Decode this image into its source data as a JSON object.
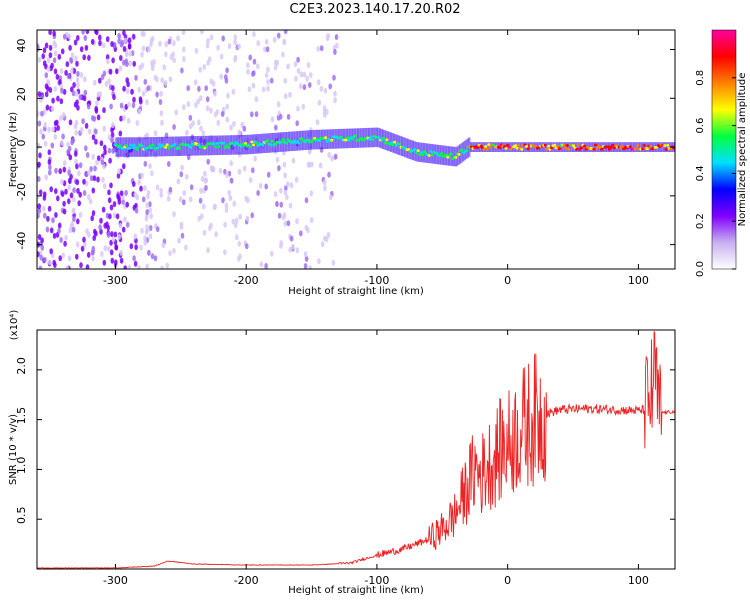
{
  "title": "C2E3.2023.140.17.20.R02",
  "chart_data": [
    {
      "type": "heatmap",
      "xlabel": "Height of straight line (km)",
      "ylabel": "Frequency (Hz)",
      "xlim": [
        -360,
        128
      ],
      "ylim": [
        -50,
        48
      ],
      "xticks": [
        -300,
        -200,
        -100,
        0,
        100
      ],
      "yticks": [
        -40,
        -20,
        0,
        20,
        40
      ],
      "colorbar": {
        "label": "Normalized spectral amplitude",
        "range": [
          0.0,
          1.0
        ],
        "ticks": [
          "0.0",
          "0.2",
          "0.4",
          "0.6",
          "0.8"
        ],
        "colormap": [
          "#ffffff",
          "#c8b0f0",
          "#8000ff",
          "#0000ff",
          "#00e0ff",
          "#00ff40",
          "#ffff00",
          "#ff8000",
          "#ff0000",
          "#ff00a0"
        ]
      },
      "trace_center_hz": [
        {
          "x": -280,
          "y": 0
        },
        {
          "x": -200,
          "y": 1
        },
        {
          "x": -150,
          "y": 3
        },
        {
          "x": -100,
          "y": 4
        },
        {
          "x": -70,
          "y": -2
        },
        {
          "x": -40,
          "y": -4
        },
        {
          "x": -30,
          "y": 0
        },
        {
          "x": 0,
          "y": 0
        },
        {
          "x": 128,
          "y": 0
        }
      ]
    },
    {
      "type": "line",
      "xlabel": "Height of straight line (km)",
      "ylabel": "SNR (10 * v/v)",
      "y_multiplier": "(x10⁴)",
      "xlim": [
        -360,
        128
      ],
      "ylim": [
        0,
        2.4
      ],
      "xticks": [
        -300,
        -200,
        -100,
        0,
        100
      ],
      "yticks": [
        0.5,
        1.0,
        1.5,
        2.0
      ],
      "ytick_labels": [
        "0.5",
        "1.0",
        "1.5",
        "2.0"
      ],
      "line_color": "#ee2222",
      "series": [
        {
          "x": [
            -360,
            -300,
            -270,
            -260,
            -240,
            -200,
            -150,
            -120,
            -100,
            -80,
            -60,
            -50,
            -40,
            -30,
            -25,
            -20,
            -15,
            -10,
            -5,
            0,
            10,
            20,
            30,
            40,
            60,
            80,
            100,
            105,
            110,
            113,
            115,
            118,
            128
          ],
          "values": [
            0.01,
            0.01,
            0.03,
            0.08,
            0.05,
            0.04,
            0.04,
            0.06,
            0.14,
            0.2,
            0.3,
            0.4,
            0.55,
            0.85,
            1.0,
            0.95,
            1.05,
            1.1,
            1.2,
            1.25,
            1.4,
            1.5,
            1.56,
            1.6,
            1.61,
            1.6,
            1.59,
            1.6,
            1.75,
            2.05,
            1.58,
            1.57,
            1.58
          ]
        }
      ]
    }
  ]
}
